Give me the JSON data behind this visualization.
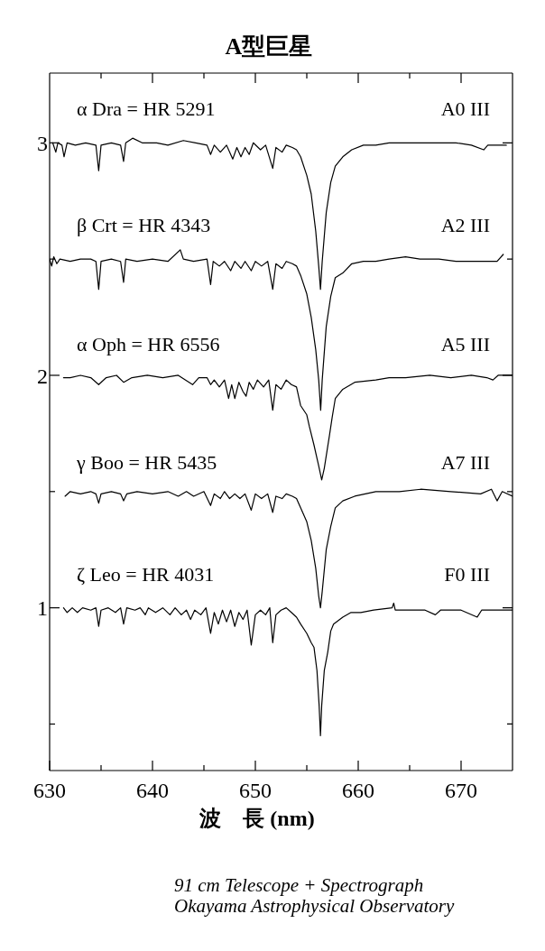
{
  "chart_data": {
    "type": "line",
    "title": "A型巨星",
    "xlabel": "波　長 (nm)",
    "xlim": [
      630,
      675
    ],
    "xticks": [
      630,
      {
        "value": 635,
        "label": null
      },
      640,
      {
        "value": 645,
        "label": null
      },
      650,
      {
        "value": 655,
        "label": null
      },
      660,
      {
        "value": 665,
        "label": null
      },
      670
    ],
    "ylim": [
      0.3,
      3.3
    ],
    "yticks": [
      {
        "value": 0.5,
        "label": null
      },
      1,
      {
        "value": 1.5,
        "label": null
      },
      2,
      {
        "value": 2.5,
        "label": null
      },
      3
    ],
    "series": [
      {
        "name": "α Dra = HR 5291",
        "color": "#000000",
        "x": [
          630.3,
          630.6,
          630.8,
          631.2,
          631.4,
          631.7,
          632.5,
          633.5,
          634.5,
          634.77,
          635.0,
          636.0,
          636.9,
          637.19,
          637.4,
          638.07,
          639.0,
          640.4,
          641.5,
          643.0,
          644.2,
          645.3,
          645.65,
          646.0,
          646.6,
          647.2,
          647.8,
          648.2,
          648.6,
          649.0,
          649.4,
          649.8,
          650.5,
          651.0,
          651.69,
          652.0,
          652.6,
          653.0,
          653.6,
          654.0,
          654.4,
          655.0,
          655.43,
          655.87,
          656.16,
          656.33,
          656.5,
          656.89,
          657.33,
          657.77,
          658.5,
          659.37,
          660.5,
          661.71,
          663.0,
          664.6,
          666.0,
          667.84,
          669.5,
          671.0,
          672.2,
          672.6,
          674.4
        ],
        "values": [
          3.0,
          2.96,
          3.0,
          2.99,
          2.94,
          3.0,
          2.99,
          3.0,
          2.99,
          2.88,
          2.99,
          3.0,
          2.99,
          2.92,
          3.0,
          3.02,
          3.0,
          3.0,
          2.99,
          3.01,
          3.0,
          2.99,
          2.95,
          2.99,
          2.96,
          2.99,
          2.93,
          2.98,
          2.94,
          2.98,
          2.95,
          3.0,
          2.97,
          2.99,
          2.89,
          2.98,
          2.96,
          2.99,
          2.98,
          2.97,
          2.94,
          2.86,
          2.78,
          2.62,
          2.47,
          2.37,
          2.49,
          2.7,
          2.83,
          2.9,
          2.94,
          2.97,
          2.99,
          2.99,
          3.0,
          3.0,
          3.0,
          3.0,
          3.0,
          2.99,
          2.97,
          2.99,
          2.99
        ]
      },
      {
        "name": "β Crt = HR 4343",
        "color": "#000000",
        "x": [
          630.0,
          630.2,
          630.4,
          630.7,
          631.0,
          632.0,
          633.0,
          634.0,
          634.5,
          634.77,
          635.0,
          636.0,
          636.9,
          637.19,
          637.4,
          638.5,
          640.0,
          641.5,
          642.7,
          643.0,
          644.0,
          645.3,
          645.65,
          645.9,
          646.5,
          647.0,
          647.6,
          648.0,
          648.6,
          649.0,
          649.6,
          650.0,
          650.6,
          651.2,
          651.69,
          652.0,
          652.6,
          653.0,
          653.6,
          654.0,
          654.4,
          655.0,
          655.43,
          655.87,
          656.16,
          656.35,
          656.5,
          656.89,
          657.33,
          657.77,
          658.5,
          659.37,
          660.5,
          661.71,
          663.0,
          664.6,
          666.0,
          667.84,
          669.5,
          671.9,
          673.5,
          674.1
        ],
        "values": [
          2.5,
          2.47,
          2.51,
          2.48,
          2.5,
          2.49,
          2.5,
          2.5,
          2.49,
          2.37,
          2.49,
          2.5,
          2.49,
          2.4,
          2.5,
          2.49,
          2.5,
          2.49,
          2.54,
          2.5,
          2.49,
          2.5,
          2.39,
          2.49,
          2.47,
          2.49,
          2.45,
          2.49,
          2.46,
          2.49,
          2.45,
          2.49,
          2.47,
          2.49,
          2.37,
          2.48,
          2.46,
          2.49,
          2.48,
          2.47,
          2.43,
          2.35,
          2.25,
          2.11,
          1.98,
          1.85,
          1.98,
          2.21,
          2.34,
          2.42,
          2.44,
          2.48,
          2.49,
          2.49,
          2.5,
          2.51,
          2.5,
          2.5,
          2.49,
          2.49,
          2.49,
          2.52
        ]
      },
      {
        "name": "α Oph = HR 6556",
        "color": "#000000",
        "x": [
          631.35,
          632.0,
          633.0,
          634.0,
          634.77,
          635.5,
          636.5,
          637.19,
          638.0,
          639.5,
          641.0,
          642.5,
          643.9,
          644.5,
          645.3,
          645.65,
          646.0,
          646.5,
          647.0,
          647.4,
          647.7,
          648.0,
          648.4,
          648.8,
          649.1,
          649.4,
          649.8,
          650.2,
          650.8,
          651.3,
          651.69,
          652.0,
          652.5,
          653.0,
          653.5,
          654.0,
          654.4,
          655.0,
          655.25,
          655.7,
          656.16,
          656.45,
          656.7,
          657.2,
          657.47,
          657.77,
          658.5,
          659.66,
          661.71,
          663.0,
          664.6,
          666.96,
          669.0,
          671.0,
          672.5,
          673.1,
          673.6,
          675.0
        ],
        "values": [
          1.99,
          1.99,
          2.0,
          1.99,
          1.96,
          1.99,
          2.0,
          1.97,
          1.99,
          2.0,
          1.99,
          2.0,
          1.96,
          1.99,
          1.99,
          1.96,
          1.98,
          1.95,
          1.98,
          1.9,
          1.96,
          1.9,
          1.97,
          1.93,
          1.91,
          1.97,
          1.94,
          1.98,
          1.95,
          1.98,
          1.85,
          1.96,
          1.94,
          1.98,
          1.96,
          1.95,
          1.87,
          1.83,
          1.78,
          1.7,
          1.61,
          1.55,
          1.6,
          1.74,
          1.82,
          1.9,
          1.94,
          1.97,
          1.98,
          1.99,
          1.99,
          2.0,
          1.99,
          2.0,
          1.99,
          1.98,
          2.0,
          2.0
        ]
      },
      {
        "name": "γ Boo = HR 5435",
        "color": "#000000",
        "x": [
          631.5,
          632.0,
          633.0,
          634.0,
          634.5,
          634.77,
          635.0,
          636.0,
          636.9,
          637.19,
          637.5,
          638.5,
          640.0,
          641.5,
          642.5,
          643.3,
          644.0,
          645.0,
          645.65,
          646.0,
          646.6,
          647.0,
          647.5,
          648.0,
          648.5,
          649.0,
          649.6,
          650.0,
          650.6,
          651.2,
          651.69,
          652.0,
          652.6,
          653.0,
          653.6,
          654.0,
          654.4,
          655.0,
          655.43,
          655.87,
          656.16,
          656.33,
          656.5,
          656.89,
          657.33,
          657.77,
          658.5,
          659.66,
          661.71,
          664.0,
          666.07,
          669.0,
          671.9,
          672.95,
          673.5,
          674.0,
          675.0
        ],
        "values": [
          1.48,
          1.5,
          1.49,
          1.5,
          1.49,
          1.45,
          1.49,
          1.5,
          1.49,
          1.46,
          1.49,
          1.5,
          1.49,
          1.5,
          1.48,
          1.5,
          1.48,
          1.5,
          1.44,
          1.49,
          1.47,
          1.5,
          1.47,
          1.49,
          1.47,
          1.49,
          1.42,
          1.49,
          1.47,
          1.49,
          1.41,
          1.48,
          1.47,
          1.49,
          1.48,
          1.47,
          1.43,
          1.37,
          1.29,
          1.17,
          1.05,
          1.0,
          1.07,
          1.25,
          1.35,
          1.43,
          1.46,
          1.48,
          1.5,
          1.5,
          1.51,
          1.5,
          1.49,
          1.51,
          1.46,
          1.5,
          1.48
        ]
      },
      {
        "name": "ζ Leo = HR 4031",
        "color": "#000000",
        "x": [
          631.35,
          631.7,
          632.2,
          632.7,
          633.2,
          634.0,
          634.5,
          634.77,
          635.0,
          635.7,
          636.4,
          636.9,
          637.19,
          637.5,
          638.3,
          638.8,
          639.3,
          639.6,
          640.3,
          641.0,
          641.7,
          642.2,
          642.8,
          643.3,
          643.7,
          644.1,
          644.7,
          645.2,
          645.65,
          646.0,
          646.4,
          646.8,
          647.2,
          647.6,
          648.0,
          648.4,
          648.8,
          649.2,
          649.6,
          650.0,
          650.5,
          651.0,
          651.4,
          651.69,
          652.0,
          652.5,
          653.0,
          653.5,
          654.0,
          654.4,
          655.0,
          655.43,
          655.7,
          655.99,
          656.2,
          656.33,
          656.45,
          656.7,
          657.04,
          657.33,
          657.6,
          658.5,
          659.3,
          660.25,
          661.5,
          663.3,
          663.45,
          663.6,
          665.0,
          666.5,
          667.5,
          668.0,
          670.0,
          671.57,
          672.0,
          673.5,
          675.0
        ],
        "values": [
          1.0,
          0.98,
          1.0,
          0.98,
          1.0,
          0.99,
          1.0,
          0.92,
          0.99,
          1.0,
          0.98,
          1.0,
          0.93,
          1.0,
          0.99,
          1.0,
          0.97,
          1.0,
          0.98,
          1.0,
          0.97,
          1.0,
          0.97,
          0.99,
          0.95,
          0.99,
          0.97,
          1.0,
          0.89,
          0.98,
          0.93,
          0.99,
          0.94,
          0.99,
          0.92,
          0.98,
          0.95,
          0.99,
          0.84,
          0.97,
          0.99,
          0.97,
          1.0,
          0.85,
          0.97,
          0.99,
          1.0,
          0.98,
          0.96,
          0.93,
          0.89,
          0.85,
          0.83,
          0.73,
          0.58,
          0.45,
          0.58,
          0.73,
          0.81,
          0.9,
          0.93,
          0.96,
          0.98,
          0.98,
          0.99,
          1.0,
          1.02,
          0.99,
          0.99,
          0.99,
          0.97,
          0.99,
          0.99,
          0.96,
          0.99,
          0.99,
          0.99
        ]
      }
    ],
    "annotations": [
      "A0 III",
      "A2 III",
      "A5 III",
      "A7 III",
      "F0 III",
      "91 cm Telescope + Spectrograph",
      "Okayama Astrophysical Observatory"
    ]
  }
}
